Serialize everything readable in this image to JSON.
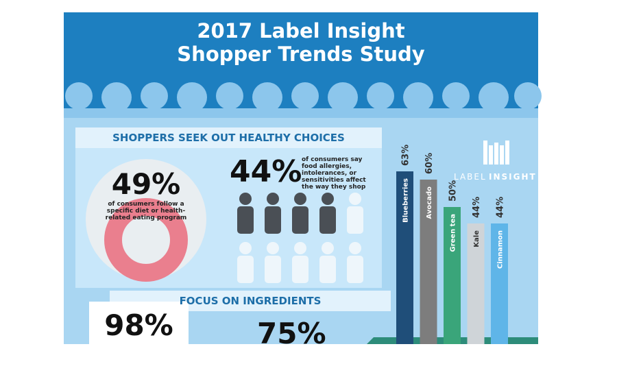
{
  "header": {
    "title_lines": [
      "2017 Label Insight",
      "Shopper Trends Study"
    ]
  },
  "brand": [
    "LABEL",
    "INSIGHT"
  ],
  "healthy": {
    "heading": "SHOPPERS SEEK OUT HEALTHY CHOICES",
    "diet": {
      "percent": "49%",
      "text": "of consumers follow a specific diet or health-related eating program"
    },
    "allergy": {
      "percent": "44%",
      "text": "of consumers say food allergies, intolerances, or sensitivities affect the way they shop"
    }
  },
  "ingredients": {
    "heading": "FOCUS ON INGREDIENTS",
    "left_percent": "98%",
    "right_percent": "75%"
  },
  "chart_data": {
    "type": "bar",
    "categories": [
      "Blueberries",
      "Avocado",
      "Green tea",
      "Kale",
      "Cinnamon"
    ],
    "values": [
      63,
      60,
      50,
      44,
      44
    ],
    "value_labels": [
      "63%",
      "60%",
      "50%",
      "44%",
      "44%"
    ],
    "colors": [
      "#1f4e79",
      "#7d7d7d",
      "#3aa57a",
      "#cfd4d8",
      "#5fb5e8"
    ]
  }
}
